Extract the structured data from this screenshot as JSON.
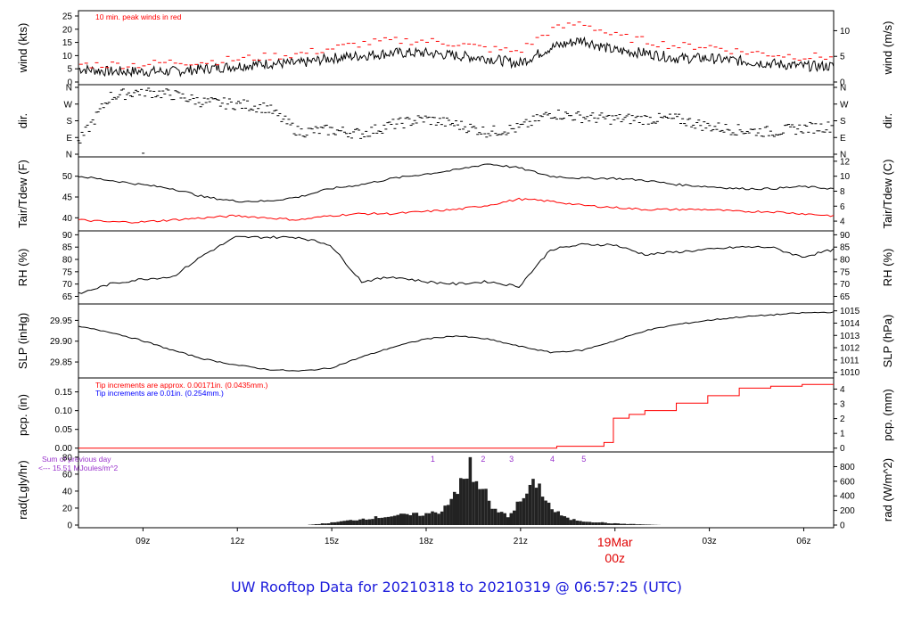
{
  "page": {
    "title": "UW Rooftop Data for 20210318  to  20210319 @ 06:57:25  (UTC)",
    "colors": {
      "line": "#000000",
      "peak": "#ff0000",
      "dew": "#ff0000",
      "blue_note": "#0000ff",
      "rad_note": "#9933cc",
      "title": "#1a1adb"
    }
  },
  "chart_data": {
    "type": "line",
    "time_axis": {
      "start": "2021-03-18 06:57 UTC",
      "end": "2021-03-19 06:57 UTC",
      "ticks": [
        "09z",
        "12z",
        "15z",
        "18z",
        "21z",
        "00z",
        "03z",
        "06z"
      ],
      "date_label": "19Mar",
      "date_tick": "00z"
    },
    "panels": [
      {
        "id": "wind",
        "ylabel_left": "wind (kts)",
        "ylabel_right": "wind (m/s)",
        "yticks_left": [
          0,
          5,
          10,
          15,
          20,
          25
        ],
        "yticks_right": [
          0,
          5,
          10
        ],
        "ylim": [
          0,
          26
        ],
        "annotation": "10 min. peak winds in red",
        "series": [
          {
            "name": "wind speed",
            "color": "#000000",
            "hours": [
              0,
              1,
              2,
              3,
              4,
              5,
              6,
              7,
              8,
              9,
              10,
              11,
              12,
              13,
              14,
              15,
              16,
              17,
              18,
              19,
              20,
              21,
              22,
              23,
              24
            ],
            "values": [
              5,
              4,
              4,
              4,
              5,
              6,
              7,
              7,
              9,
              10,
              11,
              11,
              10,
              9,
              7,
              13,
              16,
              12,
              11,
              9,
              9,
              8,
              7,
              6,
              6
            ]
          },
          {
            "name": "10 min. peak",
            "color": "#ff0000",
            "hours": [
              0,
              1,
              2,
              3,
              4,
              5,
              6,
              7,
              8,
              9,
              10,
              11,
              12,
              13,
              14,
              15,
              16,
              17,
              18,
              19,
              20,
              21,
              22,
              23,
              24
            ],
            "values": [
              6,
              6,
              6,
              7,
              7,
              8,
              9,
              10,
              12,
              14,
              15,
              15,
              14,
              12,
              11,
              19,
              22,
              17,
              15,
              13,
              13,
              11,
              10,
              9,
              9
            ]
          }
        ]
      },
      {
        "id": "dir",
        "ylabel_left": "dir.",
        "ylabel_right": "dir.",
        "yticks_left": [
          "N",
          "E",
          "S",
          "W",
          "N"
        ],
        "yticks_right": [
          "N",
          "E",
          "S",
          "W",
          "N"
        ],
        "ylim": [
          0,
          360
        ],
        "series": [
          {
            "name": "wind direction",
            "color": "#000000",
            "hours": [
              0,
              1,
              2,
              3,
              4,
              5,
              6,
              7,
              8,
              9,
              10,
              11,
              12,
              13,
              14,
              15,
              16,
              17,
              18,
              19,
              20,
              21,
              22,
              23,
              24
            ],
            "values": [
              60,
              310,
              340,
              320,
              280,
              270,
              250,
              120,
              130,
              110,
              160,
              190,
              160,
              120,
              140,
              220,
              200,
              190,
              190,
              190,
              150,
              130,
              120,
              140,
              150
            ]
          }
        ]
      },
      {
        "id": "temp",
        "ylabel_left": "Tair/Tdew (F)",
        "ylabel_right": "Tair/Tdew (C)",
        "yticks_left": [
          40,
          45,
          50
        ],
        "yticks_right": [
          4,
          6,
          8,
          10,
          12
        ],
        "ylim": [
          37.5,
          54
        ],
        "series": [
          {
            "name": "Tair",
            "color": "#000000",
            "hours": [
              0,
              1,
              2,
              3,
              4,
              5,
              6,
              7,
              8,
              9,
              10,
              11,
              12,
              13,
              14,
              15,
              16,
              17,
              18,
              19,
              20,
              21,
              22,
              23,
              24
            ],
            "values": [
              50,
              49,
              48,
              47,
              45,
              44,
              44,
              45,
              47,
              48,
              49.5,
              50.5,
              51.5,
              53,
              52,
              50,
              49.5,
              49.5,
              49,
              48,
              47.5,
              47,
              47,
              47.5,
              47
            ]
          },
          {
            "name": "Tdew",
            "color": "#ff0000",
            "hours": [
              0,
              1,
              2,
              3,
              4,
              5,
              6,
              7,
              8,
              9,
              10,
              11,
              12,
              13,
              14,
              15,
              16,
              17,
              18,
              19,
              20,
              21,
              22,
              23,
              24
            ],
            "values": [
              39.5,
              39,
              39,
              39.5,
              40,
              40.5,
              40,
              39.5,
              40.5,
              41,
              41,
              41.5,
              42,
              43,
              44.5,
              44,
              43,
              42.5,
              42,
              42,
              42,
              41.5,
              41.5,
              41,
              40.5
            ]
          }
        ]
      },
      {
        "id": "rh",
        "ylabel_left": "RH (%)",
        "ylabel_right": "RH (%)",
        "yticks_left": [
          65,
          70,
          75,
          80,
          85,
          90
        ],
        "yticks_right": [
          65,
          70,
          75,
          80,
          85,
          90
        ],
        "ylim": [
          63,
          90.5
        ],
        "series": [
          {
            "name": "RH",
            "color": "#000000",
            "hours": [
              0,
              1,
              2,
              3,
              4,
              5,
              6,
              7,
              8,
              9,
              10,
              11,
              12,
              13,
              14,
              15,
              16,
              17,
              18,
              19,
              20,
              21,
              22,
              23,
              24
            ],
            "values": [
              66,
              70,
              72,
              73,
              82,
              89,
              89,
              89,
              86,
              71,
              73,
              71,
              70,
              71,
              69,
              84,
              86,
              86,
              82,
              83,
              84,
              85,
              85,
              81,
              84
            ]
          }
        ]
      },
      {
        "id": "slp",
        "ylabel_left": "SLP (inHg)",
        "ylabel_right": "SLP (hPa)",
        "yticks_left": [
          29.85,
          29.9,
          29.95
        ],
        "yticks_right": [
          1010,
          1011,
          1012,
          1013,
          1014,
          1015
        ],
        "ylim": [
          29.818,
          29.983
        ],
        "series": [
          {
            "name": "SLP",
            "color": "#000000",
            "hours": [
              0,
              1,
              2,
              3,
              4,
              5,
              6,
              7,
              8,
              9,
              10,
              11,
              12,
              13,
              14,
              15,
              16,
              17,
              18,
              19,
              20,
              21,
              22,
              23,
              24
            ],
            "values": [
              29.935,
              29.922,
              29.902,
              29.878,
              29.857,
              29.843,
              29.832,
              29.828,
              29.835,
              29.862,
              29.886,
              29.905,
              29.913,
              29.905,
              29.888,
              29.873,
              29.878,
              29.9,
              29.925,
              29.94,
              29.95,
              29.958,
              29.963,
              29.968,
              29.97
            ]
          }
        ]
      },
      {
        "id": "pcp",
        "ylabel_left": "pcp. (in)",
        "ylabel_right": "pcp. (mm)",
        "yticks_left": [
          0.0,
          0.05,
          0.1,
          0.15
        ],
        "yticks_right": [
          0,
          1,
          2,
          3,
          4
        ],
        "ylim": [
          -0.003,
          0.18
        ],
        "notes": [
          "Tip increments are approx. 0.00171in. (0.0435mm.)",
          "Tip increments are 0.01in. (0.254mm.)"
        ],
        "series": [
          {
            "name": "accumulated precipitation",
            "color": "#ff0000",
            "hours": [
              0,
              15,
              15.2,
              16.5,
              16.7,
              17,
              17.5,
              18,
              19,
              20,
              21,
              22,
              23,
              24
            ],
            "values": [
              0,
              0,
              0.005,
              0.005,
              0.015,
              0.08,
              0.09,
              0.1,
              0.12,
              0.14,
              0.16,
              0.165,
              0.17,
              0.17
            ]
          }
        ]
      },
      {
        "id": "rad",
        "ylabel_left": "rad(Lgly/hr)",
        "ylabel_right": "rad (W/m^2)",
        "yticks_left": [
          0,
          20,
          40,
          60,
          80
        ],
        "yticks_right": [
          0,
          200,
          400,
          600,
          800
        ],
        "ylim": [
          0,
          83
        ],
        "notes": [
          "Sum of previous day",
          "<--- 15.51 MJoules/m^2"
        ],
        "markers": [
          "1",
          "2",
          "3",
          "4",
          "5"
        ],
        "series": [
          {
            "name": "solar radiation",
            "color": "#000000",
            "hours": [
              7.2,
              8,
              9,
              10,
              11,
              11.5,
              11.9,
              12.3,
              12.8,
              13.1,
              13.6,
              14,
              14.5,
              15,
              15.5,
              16,
              17,
              18.5
            ],
            "values": [
              0,
              3,
              8,
              12,
              14,
              18,
              42,
              60,
              50,
              20,
              12,
              30,
              55,
              20,
              8,
              5,
              2,
              0
            ]
          }
        ]
      }
    ]
  }
}
